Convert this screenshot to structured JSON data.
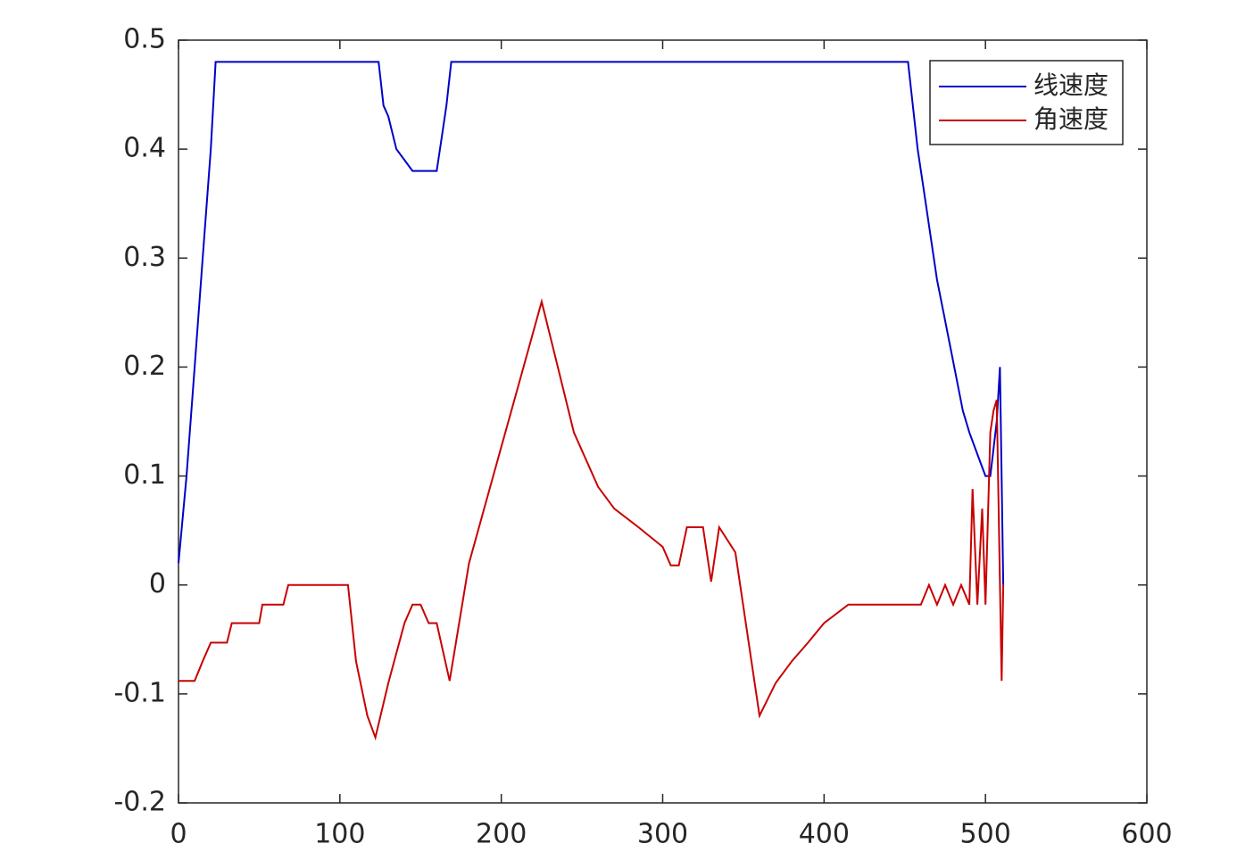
{
  "chart_data": {
    "type": "line",
    "xlim": [
      0,
      600
    ],
    "xticks": [
      0,
      100,
      200,
      300,
      400,
      500,
      600
    ],
    "ylim": [
      -0.2,
      0.5
    ],
    "yticks": [
      -0.2,
      -0.1,
      0,
      0.1,
      0.2,
      0.3,
      0.4,
      0.5
    ],
    "legend": "upper right",
    "series": [
      {
        "name": "线速度",
        "color": "#0000c8",
        "x": [
          0,
          5,
          10,
          15,
          20,
          23,
          124,
          127,
          130,
          135,
          140,
          145,
          160,
          163,
          166,
          169,
          452,
          455,
          458,
          462,
          466,
          470,
          474,
          478,
          482,
          486,
          490,
          495,
          500,
          503,
          507,
          509,
          511
        ],
        "values": [
          0.02,
          0.1,
          0.2,
          0.3,
          0.4,
          0.48,
          0.48,
          0.44,
          0.43,
          0.4,
          0.39,
          0.38,
          0.38,
          0.41,
          0.44,
          0.48,
          0.48,
          0.44,
          0.4,
          0.36,
          0.32,
          0.28,
          0.25,
          0.22,
          0.19,
          0.16,
          0.14,
          0.12,
          0.1,
          0.1,
          0.15,
          0.2,
          0.0
        ]
      },
      {
        "name": "角速度",
        "color": "#c80000",
        "x": [
          0,
          10,
          15,
          20,
          30,
          33,
          50,
          52,
          65,
          68,
          105,
          110,
          117,
          122,
          130,
          140,
          145,
          150,
          155,
          160,
          168,
          180,
          195,
          210,
          225,
          235,
          245,
          260,
          270,
          285,
          300,
          305,
          310,
          315,
          325,
          330,
          335,
          345,
          360,
          370,
          380,
          390,
          400,
          415,
          460,
          465,
          470,
          475,
          480,
          485,
          490,
          492,
          495,
          498,
          500,
          503,
          505,
          507,
          510,
          511
        ],
        "values": [
          -0.088,
          -0.088,
          -0.07,
          -0.053,
          -0.053,
          -0.035,
          -0.035,
          -0.018,
          -0.018,
          0,
          0,
          -0.07,
          -0.12,
          -0.14,
          -0.09,
          -0.035,
          -0.018,
          -0.018,
          -0.035,
          -0.035,
          -0.088,
          0.02,
          0.1,
          0.18,
          0.26,
          0.2,
          0.14,
          0.09,
          0.07,
          0.053,
          0.035,
          0.018,
          0.018,
          0.053,
          0.053,
          0.003,
          0.053,
          0.03,
          -0.12,
          -0.09,
          -0.07,
          -0.053,
          -0.035,
          -0.018,
          -0.018,
          0,
          -0.018,
          0,
          -0.018,
          0,
          -0.018,
          0.088,
          -0.018,
          0.07,
          -0.018,
          0.14,
          0.16,
          0.17,
          -0.088,
          0
        ]
      }
    ]
  }
}
